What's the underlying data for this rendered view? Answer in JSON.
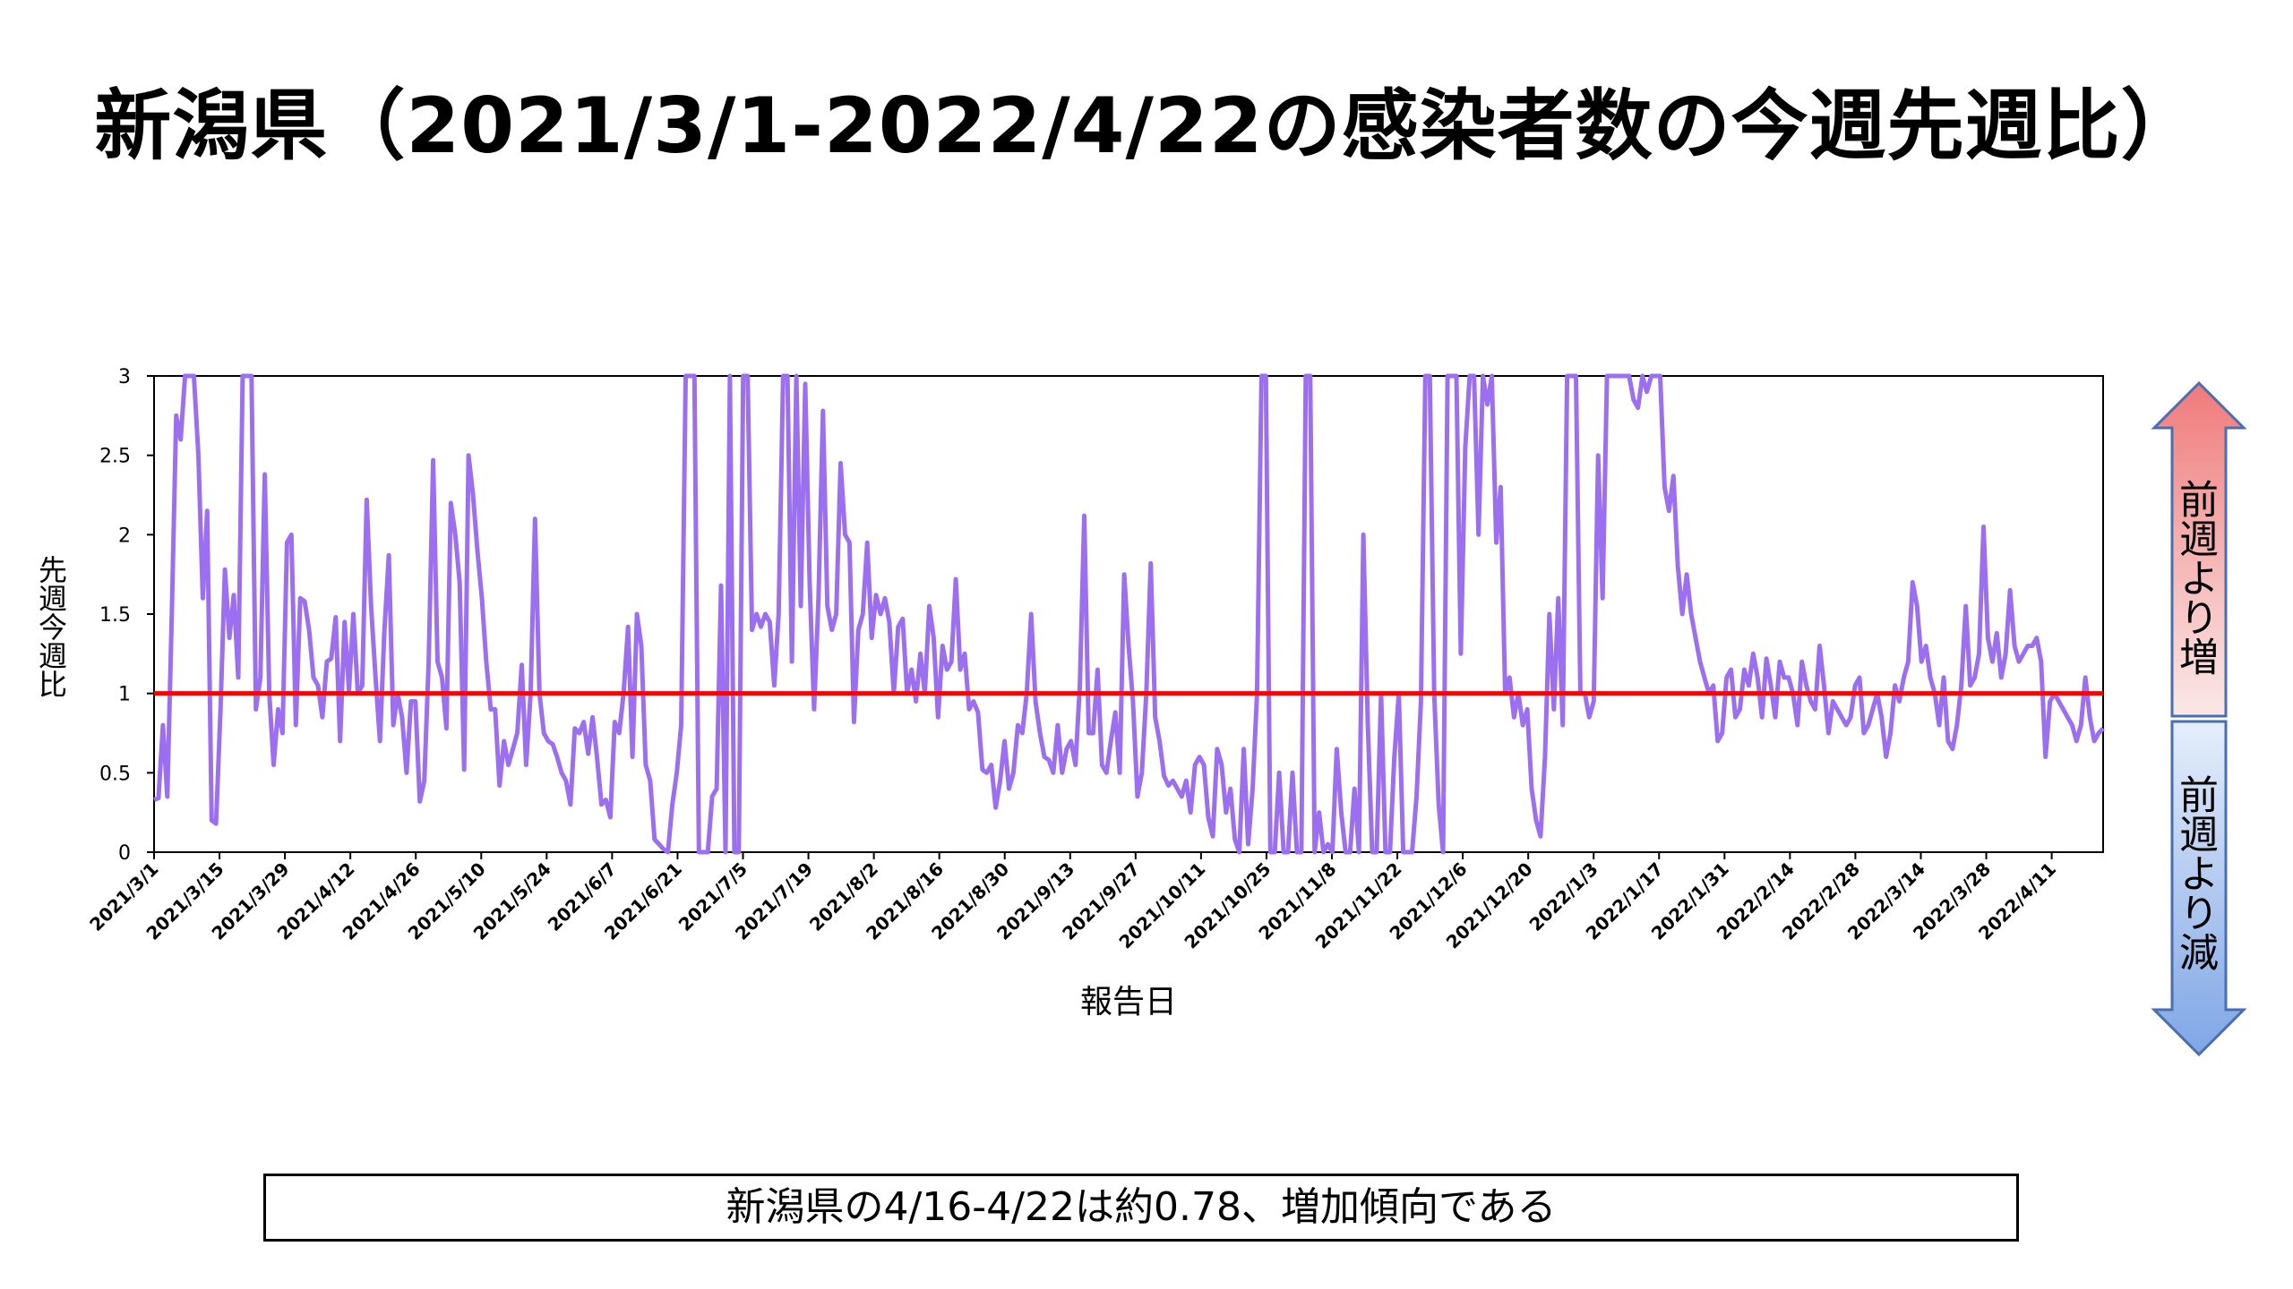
{
  "title": "新潟県（2021/3/1-2022/4/22の感染者数の今週先週比）",
  "summary": "新潟県の4/16-4/22は約0.78、増加傾向である",
  "indicator": {
    "up_label": "前週より増",
    "down_label": "前週より減"
  },
  "colors": {
    "series": "#9b6ff0",
    "reference": "#ff0000",
    "arrow_up": "#f08080",
    "arrow_down": "#7fa6e6"
  },
  "chart_data": {
    "type": "line",
    "xlabel": "報告日",
    "ylabel": "先週今週比",
    "ylim": [
      0,
      3
    ],
    "yticks": [
      "0",
      "0.5",
      "1",
      "1.5",
      "2",
      "2.5",
      "3"
    ],
    "xticks": [
      "2021/3/1",
      "2021/3/15",
      "2021/3/29",
      "2021/4/12",
      "2021/4/26",
      "2021/5/10",
      "2021/5/24",
      "2021/6/7",
      "2021/6/21",
      "2021/7/5",
      "2021/7/19",
      "2021/8/2",
      "2021/8/16",
      "2021/8/30",
      "2021/9/13",
      "2021/9/27",
      "2021/10/11",
      "2021/10/25",
      "2021/11/8",
      "2021/11/22",
      "2021/12/6",
      "2021/12/20",
      "2022/1/3",
      "2022/1/17",
      "2022/1/31",
      "2022/2/14",
      "2022/2/28",
      "2022/3/14",
      "2022/3/28",
      "2022/4/11"
    ],
    "reference_line": 1,
    "grid": false,
    "series": [
      {
        "x_start": "2021/3/1",
        "x_end": "2022/4/22",
        "values": [
          0.33,
          0.34,
          0.8,
          0.35,
          1.5,
          2.75,
          2.6,
          3,
          3,
          3,
          2.5,
          1.6,
          2.15,
          0.2,
          0.18,
          0.9,
          1.78,
          1.35,
          1.62,
          1.1,
          3,
          3,
          3,
          0.9,
          1.1,
          2.38,
          1.0,
          0.55,
          0.9,
          0.75,
          1.95,
          2.0,
          0.8,
          1.6,
          1.58,
          1.4,
          1.1,
          1.05,
          0.85,
          1.2,
          1.22,
          1.48,
          0.7,
          1.45,
          1.02,
          1.5,
          1.0,
          1.05,
          2.22,
          1.55,
          1.1,
          0.7,
          1.4,
          1.87,
          0.8,
          1.0,
          0.85,
          0.5,
          0.95,
          0.95,
          0.32,
          0.45,
          1.2,
          2.47,
          1.2,
          1.1,
          0.78,
          2.2,
          2.0,
          1.7,
          0.52,
          2.5,
          2.25,
          1.9,
          1.6,
          1.2,
          0.9,
          0.9,
          0.42,
          0.7,
          0.55,
          0.65,
          0.75,
          1.18,
          0.55,
          1.0,
          2.1,
          1.0,
          0.75,
          0.7,
          0.68,
          0.6,
          0.5,
          0.45,
          0.3,
          0.78,
          0.75,
          0.82,
          0.62,
          0.85,
          0.6,
          0.3,
          0.33,
          0.22,
          0.82,
          0.75,
          1.0,
          1.42,
          0.6,
          1.5,
          1.3,
          0.55,
          0.45,
          0.08,
          0.05,
          0.02,
          0.0,
          0.3,
          0.5,
          0.8,
          3,
          3,
          3,
          0.0,
          0.0,
          0.0,
          0.35,
          0.4,
          1.68,
          0.0,
          3,
          0.0,
          0.0,
          3,
          3,
          1.4,
          1.5,
          1.42,
          1.5,
          1.45,
          1.05,
          1.5,
          3,
          3,
          1.2,
          3,
          1.55,
          2.95,
          1.7,
          0.9,
          1.6,
          2.78,
          1.55,
          1.4,
          1.5,
          2.45,
          2.0,
          1.95,
          0.82,
          1.4,
          1.5,
          1.95,
          1.35,
          1.62,
          1.5,
          1.6,
          1.45,
          1.0,
          1.42,
          1.47,
          1.0,
          1.15,
          0.95,
          1.25,
          1.0,
          1.55,
          1.35,
          0.85,
          1.3,
          1.15,
          1.2,
          1.72,
          1.15,
          1.25,
          0.9,
          0.95,
          0.88,
          0.52,
          0.5,
          0.55,
          0.28,
          0.45,
          0.7,
          0.4,
          0.5,
          0.8,
          0.75,
          1.0,
          1.5,
          0.95,
          0.75,
          0.6,
          0.58,
          0.5,
          0.8,
          0.5,
          0.65,
          0.7,
          0.55,
          1.05,
          2.12,
          0.75,
          0.75,
          1.15,
          0.55,
          0.5,
          0.7,
          0.88,
          0.5,
          1.75,
          1.3,
          0.95,
          0.35,
          0.5,
          1.0,
          1.82,
          0.85,
          0.7,
          0.48,
          0.42,
          0.45,
          0.4,
          0.35,
          0.45,
          0.25,
          0.55,
          0.6,
          0.55,
          0.22,
          0.1,
          0.65,
          0.55,
          0.25,
          0.4,
          0.08,
          0.0,
          0.65,
          0.05,
          0.4,
          1.0,
          3,
          3,
          0.0,
          0.0,
          0.5,
          0.0,
          0.0,
          0.5,
          0.0,
          0.0,
          3,
          3,
          0.0,
          0.25,
          0.0,
          0.05,
          0.0,
          0.65,
          0.25,
          0.0,
          0.0,
          0.4,
          0.0,
          2.0,
          0.8,
          0.0,
          0.0,
          1.0,
          0.0,
          0.0,
          0.6,
          1.0,
          0.0,
          0.0,
          0.0,
          0.35,
          0.95,
          3,
          3,
          1.0,
          0.3,
          0.0,
          3,
          3,
          3,
          1.25,
          2.55,
          3,
          3,
          2.0,
          3,
          2.82,
          3,
          1.95,
          2.3,
          1.0,
          1.1,
          0.85,
          1.0,
          0.8,
          0.9,
          0.4,
          0.2,
          0.1,
          0.6,
          1.5,
          0.9,
          1.6,
          0.8,
          3,
          3,
          3,
          1.0,
          1.0,
          0.85,
          0.95,
          2.5,
          1.6,
          3,
          3,
          3,
          3,
          3,
          3,
          2.85,
          2.8,
          3,
          2.9,
          3,
          3,
          3,
          2.3,
          2.15,
          2.37,
          1.8,
          1.5,
          1.75,
          1.5,
          1.35,
          1.2,
          1.1,
          1.0,
          1.05,
          0.7,
          0.75,
          1.1,
          1.15,
          0.85,
          0.9,
          1.15,
          1.05,
          1.25,
          1.1,
          0.85,
          1.22,
          1.05,
          0.85,
          1.2,
          1.1,
          1.1,
          1.0,
          0.8,
          1.2,
          1.05,
          0.95,
          0.9,
          1.3,
          1.05,
          0.75,
          0.95,
          0.9,
          0.85,
          0.8,
          0.85,
          1.05,
          1.1,
          0.75,
          0.8,
          0.9,
          1.0,
          0.85,
          0.6,
          0.75,
          1.05,
          0.95,
          1.1,
          1.2,
          1.7,
          1.55,
          1.2,
          1.3,
          1.1,
          1.0,
          0.8,
          1.1,
          0.7,
          0.65,
          0.8,
          1.05,
          1.55,
          1.05,
          1.1,
          1.25,
          2.05,
          1.35,
          1.2,
          1.38,
          1.1,
          1.25,
          1.65,
          1.3,
          1.2,
          1.25,
          1.3,
          1.3,
          1.35,
          1.2,
          0.6,
          0.95,
          1.0,
          0.95,
          0.9,
          0.85,
          0.8,
          0.7,
          0.8,
          1.1,
          0.85,
          0.7,
          0.75,
          0.78
        ]
      }
    ]
  }
}
